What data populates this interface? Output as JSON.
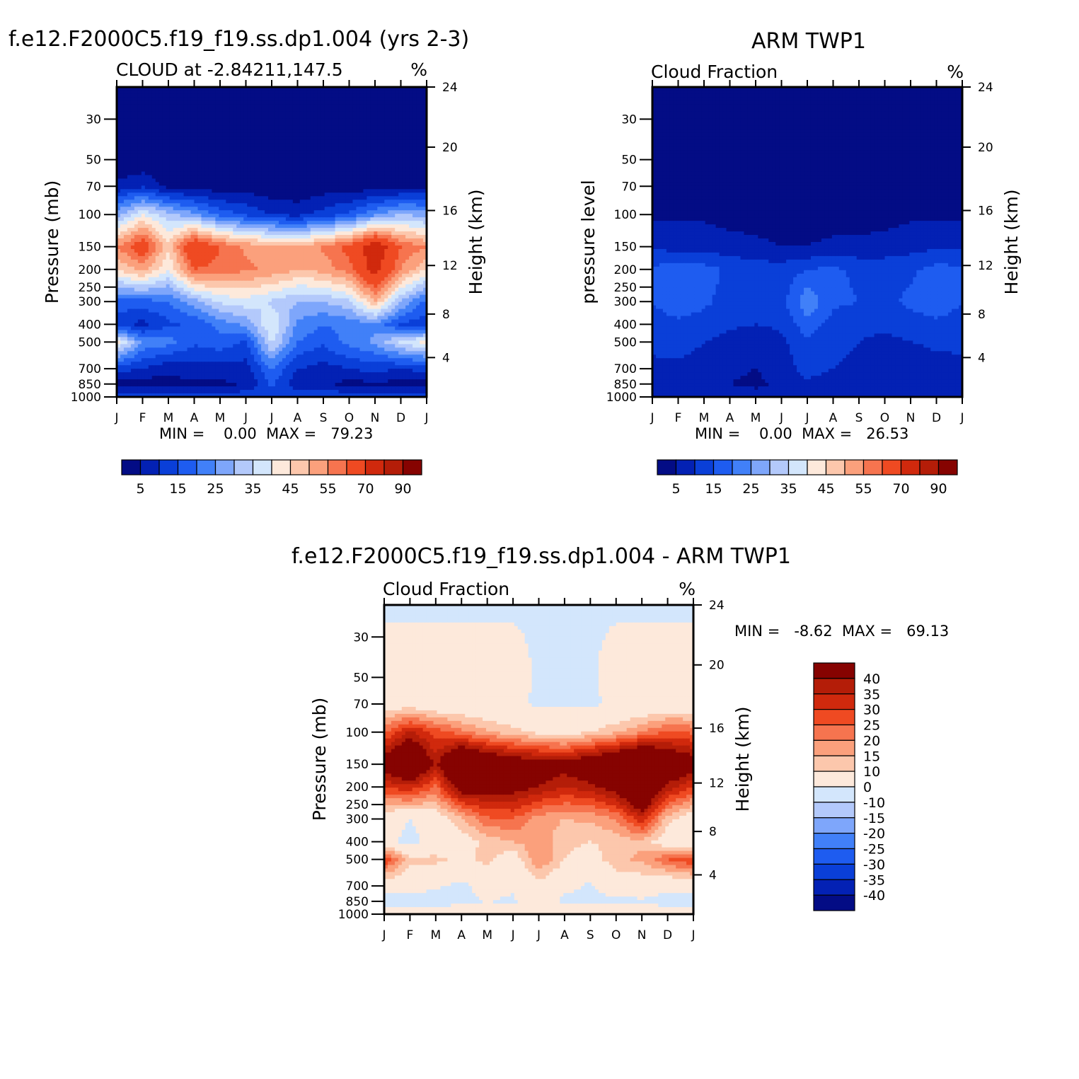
{
  "chart_data": [
    {
      "type": "heatmap",
      "panel": "model",
      "title": "f.e12.F2000C5.f19_f19.ss.dp1.004 (yrs 2-3)",
      "left_label": "CLOUD at -2.84211,147.5",
      "right_label": "%",
      "ylabel": "Pressure (mb)",
      "ylabel_right": "Height (km)",
      "months": [
        "J",
        "F",
        "M",
        "A",
        "M",
        "J",
        "J",
        "A",
        "S",
        "O",
        "N",
        "D",
        "J"
      ],
      "pressure_ticks": [
        30,
        50,
        70,
        100,
        150,
        200,
        250,
        300,
        400,
        500,
        700,
        850,
        1000
      ],
      "height_ticks": [
        24,
        20,
        16,
        12,
        8,
        4
      ],
      "ylim": [
        1000,
        20
      ],
      "min_max_text": "MIN =    0.00  MAX =   79.23",
      "min": 0.0,
      "max": 79.23,
      "colorbar_labels": [
        "5",
        "15",
        "25",
        "35",
        "45",
        "55",
        "70",
        "90"
      ],
      "grid": {
        "levels": [
          20,
          50,
          70,
          100,
          150,
          200,
          300,
          400,
          500,
          700,
          850,
          1000
        ],
        "values": [
          [
            0,
            0,
            0,
            0,
            0,
            0,
            0,
            0,
            0,
            0,
            0,
            0,
            0
          ],
          [
            1,
            1,
            1,
            1,
            1,
            1,
            1,
            1,
            1,
            1,
            1,
            1,
            1
          ],
          [
            6,
            9,
            3,
            2,
            2,
            2,
            1,
            1,
            2,
            2,
            2,
            2,
            3
          ],
          [
            28,
            40,
            32,
            26,
            18,
            14,
            10,
            8,
            12,
            16,
            24,
            30,
            28
          ],
          [
            55,
            66,
            46,
            70,
            60,
            54,
            52,
            50,
            56,
            62,
            78,
            60,
            55
          ],
          [
            45,
            52,
            40,
            60,
            58,
            56,
            54,
            50,
            52,
            58,
            74,
            55,
            45
          ],
          [
            18,
            18,
            20,
            28,
            36,
            38,
            34,
            30,
            30,
            34,
            50,
            30,
            18
          ],
          [
            12,
            8,
            14,
            16,
            22,
            26,
            40,
            24,
            20,
            22,
            24,
            14,
            12
          ],
          [
            42,
            24,
            22,
            16,
            18,
            14,
            36,
            20,
            16,
            22,
            26,
            36,
            42
          ],
          [
            12,
            10,
            6,
            8,
            8,
            8,
            20,
            10,
            8,
            10,
            12,
            10,
            12
          ],
          [
            3,
            2,
            3,
            4,
            4,
            5,
            16,
            6,
            6,
            3,
            4,
            3,
            3
          ],
          [
            12,
            12,
            12,
            12,
            12,
            14,
            14,
            14,
            14,
            14,
            14,
            12,
            12
          ]
        ]
      }
    },
    {
      "type": "heatmap",
      "panel": "obs",
      "title": "ARM TWP1",
      "left_label": "Cloud Fraction",
      "right_label": "%",
      "ylabel": "pressure level",
      "ylabel_right": "Height (km)",
      "months": [
        "J",
        "F",
        "M",
        "A",
        "M",
        "J",
        "J",
        "A",
        "S",
        "O",
        "N",
        "D",
        "J"
      ],
      "pressure_ticks": [
        30,
        50,
        70,
        100,
        150,
        200,
        250,
        300,
        400,
        500,
        700,
        850,
        1000
      ],
      "height_ticks": [
        24,
        20,
        16,
        12,
        8,
        4
      ],
      "ylim": [
        1000,
        20
      ],
      "min_max_text": "MIN =    0.00  MAX =   26.53",
      "min": 0.0,
      "max": 26.53,
      "colorbar_labels": [
        "5",
        "15",
        "25",
        "35",
        "45",
        "55",
        "70",
        "90"
      ],
      "grid": {
        "levels": [
          20,
          50,
          70,
          100,
          150,
          200,
          300,
          400,
          500,
          700,
          850,
          1000
        ],
        "values": [
          [
            0,
            0,
            0,
            0,
            0,
            0,
            0,
            0,
            0,
            0,
            0,
            0,
            0
          ],
          [
            1,
            1,
            1,
            1,
            1,
            1,
            1,
            1,
            1,
            1,
            1,
            1,
            1
          ],
          [
            2,
            2,
            2,
            2,
            2,
            2,
            2,
            2,
            2,
            2,
            2,
            2,
            2
          ],
          [
            4,
            4,
            4,
            3,
            3,
            3,
            3,
            3,
            3,
            3,
            4,
            4,
            4
          ],
          [
            9,
            8,
            8,
            7,
            6,
            5,
            5,
            6,
            6,
            7,
            8,
            9,
            9
          ],
          [
            16,
            18,
            17,
            14,
            13,
            12,
            15,
            16,
            14,
            13,
            14,
            17,
            16
          ],
          [
            15,
            18,
            16,
            13,
            12,
            13,
            24,
            16,
            15,
            14,
            16,
            18,
            15
          ],
          [
            13,
            14,
            13,
            11,
            10,
            11,
            18,
            13,
            12,
            12,
            13,
            14,
            13
          ],
          [
            11,
            12,
            10,
            8,
            6,
            9,
            14,
            11,
            10,
            8,
            10,
            11,
            11
          ],
          [
            9,
            9,
            8,
            6,
            5,
            7,
            12,
            10,
            9,
            6,
            7,
            8,
            9
          ],
          [
            8,
            7,
            6,
            5,
            4,
            6,
            9,
            8,
            7,
            5,
            5,
            6,
            8
          ],
          [
            7,
            7,
            7,
            7,
            7,
            7,
            7,
            7,
            7,
            7,
            7,
            7,
            7
          ]
        ]
      }
    },
    {
      "type": "heatmap",
      "panel": "diff",
      "title": "f.e12.F2000C5.f19_f19.ss.dp1.004 - ARM TWP1",
      "left_label": "Cloud Fraction",
      "right_label": "%",
      "ylabel": "Pressure (mb)",
      "ylabel_right": "Height (km)",
      "months": [
        "J",
        "F",
        "M",
        "A",
        "M",
        "J",
        "J",
        "A",
        "S",
        "O",
        "N",
        "D",
        "J"
      ],
      "pressure_ticks": [
        30,
        50,
        70,
        100,
        150,
        200,
        250,
        300,
        400,
        500,
        700,
        850,
        1000
      ],
      "height_ticks": [
        24,
        20,
        16,
        12,
        8,
        4
      ],
      "ylim": [
        1000,
        20
      ],
      "min_max_text": "MIN =   -8.62  MAX =   69.13",
      "min": -8.62,
      "max": 69.13,
      "colorbar_labels": [
        "40",
        "35",
        "30",
        "25",
        "20",
        "15",
        "10",
        "0",
        "-10",
        "-15",
        "-20",
        "-25",
        "-30",
        "-35",
        "-40"
      ],
      "grid": {
        "levels": [
          20,
          50,
          70,
          100,
          150,
          200,
          300,
          400,
          500,
          700,
          850,
          1000
        ],
        "values": [
          [
            -1,
            -1,
            -1,
            -1,
            -1,
            -1,
            -1,
            -1,
            -1,
            -1,
            -1,
            -1,
            -1
          ],
          [
            3,
            3,
            3,
            3,
            3,
            3,
            -1,
            -1,
            -1,
            3,
            3,
            3,
            3
          ],
          [
            4,
            6,
            3,
            2,
            2,
            1,
            -1,
            -1,
            -1,
            1,
            2,
            3,
            4
          ],
          [
            24,
            36,
            28,
            22,
            16,
            12,
            8,
            6,
            10,
            14,
            20,
            26,
            24
          ],
          [
            46,
            58,
            38,
            62,
            54,
            48,
            46,
            44,
            50,
            56,
            66,
            52,
            46
          ],
          [
            30,
            34,
            24,
            46,
            44,
            44,
            40,
            35,
            38,
            45,
            60,
            38,
            30
          ],
          [
            4,
            0,
            4,
            14,
            24,
            25,
            17,
            15,
            16,
            20,
            34,
            12,
            4
          ],
          [
            2,
            -2,
            2,
            6,
            12,
            15,
            18,
            12,
            10,
            12,
            14,
            4,
            2
          ],
          [
            30,
            12,
            12,
            8,
            12,
            5,
            20,
            10,
            6,
            14,
            16,
            25,
            30
          ],
          [
            3,
            4,
            1,
            -2,
            3,
            1,
            8,
            2,
            -1,
            4,
            5,
            2,
            3
          ],
          [
            -4,
            -5,
            -3,
            -1,
            0,
            -1,
            5,
            -2,
            -1,
            -2,
            -1,
            -3,
            -4
          ],
          [
            4,
            4,
            4,
            4,
            4,
            6,
            6,
            6,
            6,
            6,
            6,
            4,
            4
          ]
        ]
      }
    }
  ],
  "colors": {
    "abs_scale": [
      "#030c85",
      "#0321b4",
      "#0a3fd8",
      "#1e5cf0",
      "#4180f8",
      "#7ea6fb",
      "#b3c9fb",
      "#d3e6fc",
      "#fde9db",
      "#fcc7ac",
      "#fba07c",
      "#f6744f",
      "#ef4a22",
      "#d0290d",
      "#b41d08",
      "#860301"
    ],
    "abs_bounds": [
      5,
      10,
      15,
      20,
      25,
      30,
      35,
      40,
      45,
      50,
      55,
      60,
      70,
      80,
      90
    ],
    "diff_scale": [
      "#030c85",
      "#0321b4",
      "#0a3fd8",
      "#1e5cf0",
      "#4180f8",
      "#7ea6fb",
      "#b3c9fb",
      "#d3e6fc",
      "#fde9db",
      "#fcc7ac",
      "#fba07c",
      "#f6744f",
      "#ef4a22",
      "#d0290d",
      "#b41d08",
      "#860301"
    ],
    "diff_bounds": [
      -40,
      -35,
      -30,
      -25,
      -20,
      -15,
      -10,
      0,
      10,
      15,
      20,
      25,
      30,
      35,
      40
    ]
  }
}
